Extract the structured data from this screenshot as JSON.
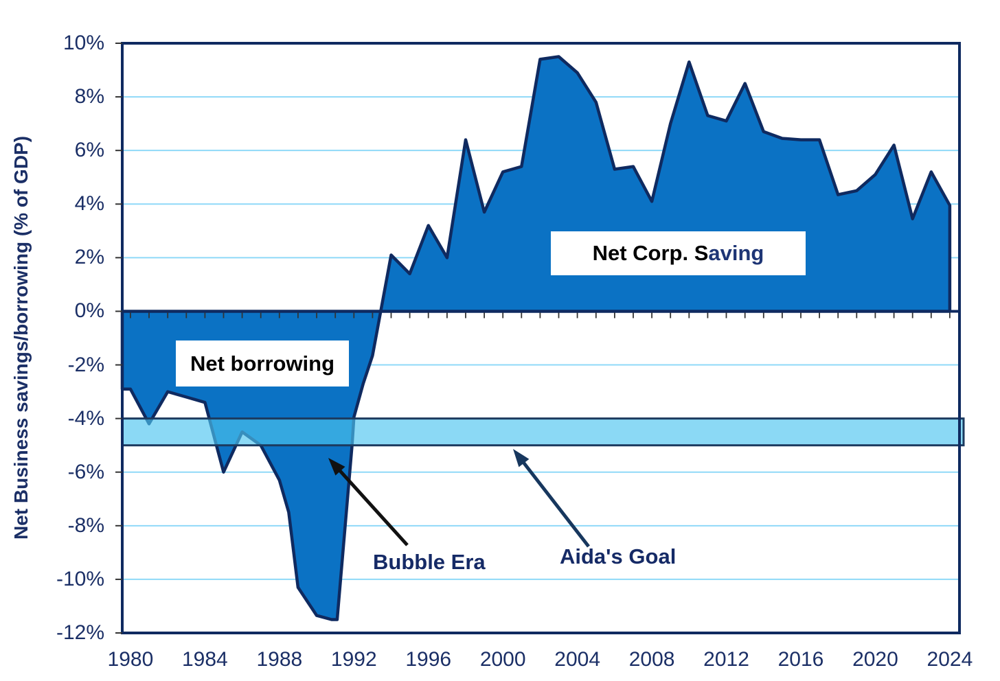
{
  "chart_data": {
    "type": "area",
    "title": "",
    "ylabel": "Net Business savings/borrowing (% of GDP)",
    "xlabel": "",
    "x_range": [
      1979.56,
      2024.52
    ],
    "y_range": [
      -12,
      10
    ],
    "grid": "horizontal-only",
    "y_ticks": [
      {
        "label": "10%",
        "value": 10
      },
      {
        "label": "8%",
        "value": 8
      },
      {
        "label": "6%",
        "value": 6
      },
      {
        "label": "4%",
        "value": 4
      },
      {
        "label": "2%",
        "value": 2
      },
      {
        "label": "0%",
        "value": 0
      },
      {
        "label": "-2%",
        "value": -2
      },
      {
        "label": "-4%",
        "value": -4
      },
      {
        "label": "-6%",
        "value": -6
      },
      {
        "label": "-8%",
        "value": -8
      },
      {
        "label": "-10%",
        "value": -10
      },
      {
        "label": "-12%",
        "value": -12
      }
    ],
    "x_ticks": [
      {
        "label": "1980",
        "year": 1980
      },
      {
        "label": "1984",
        "year": 1984
      },
      {
        "label": "1988",
        "year": 1988
      },
      {
        "label": "1992",
        "year": 1992
      },
      {
        "label": "1996",
        "year": 1996
      },
      {
        "label": "2000",
        "year": 2000
      },
      {
        "label": "2004",
        "year": 2004
      },
      {
        "label": "2008",
        "year": 2008
      },
      {
        "label": "2012",
        "year": 2012
      },
      {
        "label": "2016",
        "year": 2016
      },
      {
        "label": "2020",
        "year": 2020
      },
      {
        "label": "2024",
        "year": 2024
      }
    ],
    "minor_x_tick_step_years": 1,
    "series": [
      {
        "points": [
          [
            1979.56,
            -2.9
          ],
          [
            1980,
            -2.9
          ],
          [
            1981,
            -4.2
          ],
          [
            1982,
            -3.0
          ],
          [
            1983,
            -3.2
          ],
          [
            1984,
            -3.4
          ],
          [
            1985,
            -6.0
          ],
          [
            1986,
            -4.5
          ],
          [
            1987,
            -5.0
          ],
          [
            1988,
            -6.3
          ],
          [
            1988.5,
            -7.5
          ],
          [
            1989,
            -10.3
          ],
          [
            1990,
            -11.35
          ],
          [
            1990.8,
            -11.5
          ],
          [
            1991.1,
            -11.5
          ],
          [
            1991.9,
            -5.0
          ],
          [
            1992,
            -3.95
          ],
          [
            1992.5,
            -2.7
          ],
          [
            1993,
            -1.65
          ],
          [
            1994,
            2.1
          ],
          [
            1995,
            1.4
          ],
          [
            1996,
            3.2
          ],
          [
            1997,
            2.0
          ],
          [
            1998,
            6.4
          ],
          [
            1999,
            3.7
          ],
          [
            2000,
            5.2
          ],
          [
            2001,
            5.4
          ],
          [
            2002,
            9.4
          ],
          [
            2003,
            9.5
          ],
          [
            2004,
            8.9
          ],
          [
            2005,
            7.8
          ],
          [
            2006,
            5.3
          ],
          [
            2007,
            5.4
          ],
          [
            2008,
            4.1
          ],
          [
            2009,
            7.0
          ],
          [
            2010,
            9.3
          ],
          [
            2011,
            7.3
          ],
          [
            2012,
            7.1
          ],
          [
            2013,
            8.5
          ],
          [
            2014,
            6.7
          ],
          [
            2015,
            6.45
          ],
          [
            2016,
            6.4
          ],
          [
            2017,
            6.4
          ],
          [
            2018,
            4.35
          ],
          [
            2019,
            4.5
          ],
          [
            2020,
            5.1
          ],
          [
            2021,
            6.2
          ],
          [
            2022,
            3.45
          ],
          [
            2023,
            5.2
          ],
          [
            2024,
            3.95
          ]
        ]
      }
    ],
    "band": {
      "label": "Aida's Goal",
      "y_from": -4,
      "y_to": -5
    },
    "annotations": [
      {
        "text": "Net borrowing"
      },
      {
        "text": "Net Corp. S",
        "text2": "aving"
      },
      {
        "text": "Bubble Era"
      },
      {
        "text": "Aida's Goal"
      }
    ],
    "arrows": [
      {
        "name": "bubble-era-arrow",
        "from": [
          593,
          794
        ],
        "to": [
          478,
          667
        ],
        "color": "#111111"
      },
      {
        "name": "aidas-goal-arrow",
        "from": [
          857,
          796
        ],
        "to": [
          747,
          654
        ],
        "color": "#17375E"
      }
    ],
    "colors": {
      "area_fill": "#0B72C4",
      "area_outline": "#0F2A60",
      "plot_border": "#0F2A60",
      "zero_axis": "#0F2A60",
      "gridline": "#8FD9F8",
      "axis_tick_mark": "#333333",
      "axis_text": "#1B2F66",
      "band_fill": "rgba(77,196,240,0.65)",
      "band_border": "#1C3A5F",
      "boxed_label_bg": "#FFFFFF",
      "boxed_label_text": "#000000",
      "annotation_text": "#152A66"
    }
  }
}
